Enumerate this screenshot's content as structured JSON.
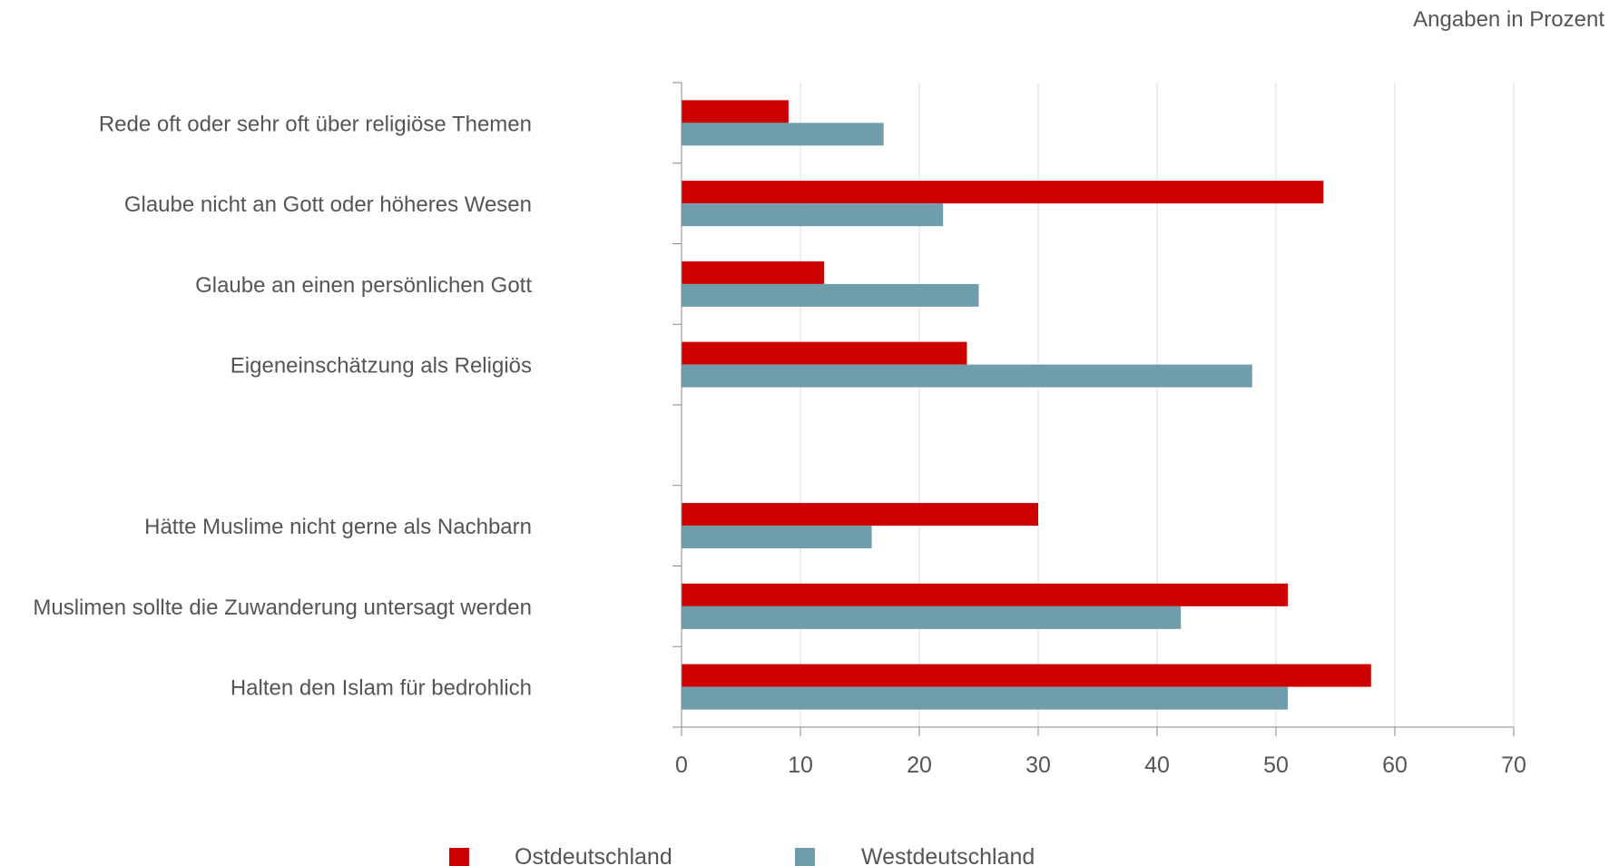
{
  "unit_note": "Angaben in Prozent",
  "chart_data": {
    "type": "bar",
    "orientation": "horizontal",
    "categories": [
      "Rede oft oder sehr oft über religiöse Themen",
      "Glaube nicht an Gott oder höheres Wesen",
      "Glaube an einen persönlichen Gott",
      "Eigeneinschätzung als Religiös",
      "",
      "Hätte Muslime nicht gerne als Nachbarn",
      "Muslimen sollte die Zuwanderung untersagt werden",
      "Halten den Islam für bedrohlich"
    ],
    "series": [
      {
        "name": "Ostdeutschland",
        "color": "#cc0000",
        "values": [
          9,
          54,
          12,
          24,
          null,
          30,
          51,
          58
        ]
      },
      {
        "name": "Westdeutschland",
        "color": "#6f9dac",
        "values": [
          17,
          22,
          25,
          48,
          null,
          16,
          42,
          51
        ]
      }
    ],
    "xlim": [
      0,
      70
    ],
    "xticks": [
      0,
      10,
      20,
      30,
      40,
      50,
      60,
      70
    ],
    "grid": true,
    "legend_position": "bottom"
  }
}
